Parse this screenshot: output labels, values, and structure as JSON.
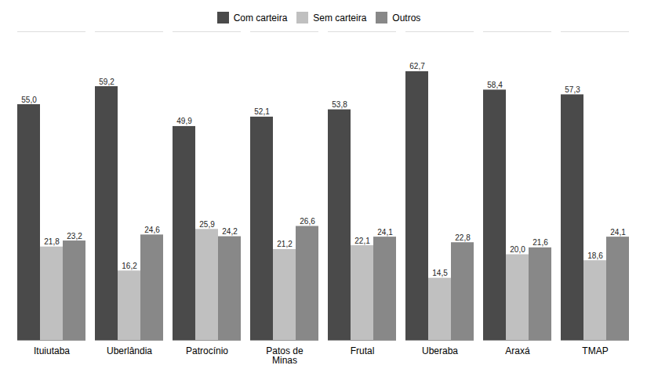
{
  "chart_data": {
    "type": "bar",
    "categories": [
      "Ituiutaba",
      "Uberlândia",
      "Patrocínio",
      "Patos de\nMinas",
      "Frutal",
      "Uberaba",
      "Araxá",
      "TMAP"
    ],
    "series": [
      {
        "name": "Com carteira",
        "color": "#4a4a4a",
        "values": [
          55.0,
          59.2,
          49.9,
          52.1,
          53.8,
          62.7,
          58.4,
          57.3
        ],
        "value_labels": [
          "55,0",
          "59,2",
          "49,9",
          "52,1",
          "53,8",
          "62,7",
          "58,4",
          "57,3"
        ]
      },
      {
        "name": "Sem carteira",
        "color": "#c0c0c0",
        "values": [
          21.8,
          16.2,
          25.9,
          21.2,
          22.1,
          14.5,
          20.0,
          18.6
        ],
        "value_labels": [
          "21,8",
          "16,2",
          "25,9",
          "21,2",
          "22,1",
          "14,5",
          "20,0",
          "18,6"
        ]
      },
      {
        "name": "Outros",
        "color": "#888888",
        "values": [
          23.2,
          24.6,
          24.2,
          26.6,
          24.1,
          22.8,
          21.6,
          24.1
        ],
        "value_labels": [
          "23,2",
          "24,6",
          "24,2",
          "26,6",
          "24,1",
          "22,8",
          "21,6",
          "24,1"
        ]
      }
    ],
    "ylim": [
      0,
      72
    ],
    "tick_labels": "x",
    "data_labels": true,
    "legend": "top",
    "grid": false
  }
}
